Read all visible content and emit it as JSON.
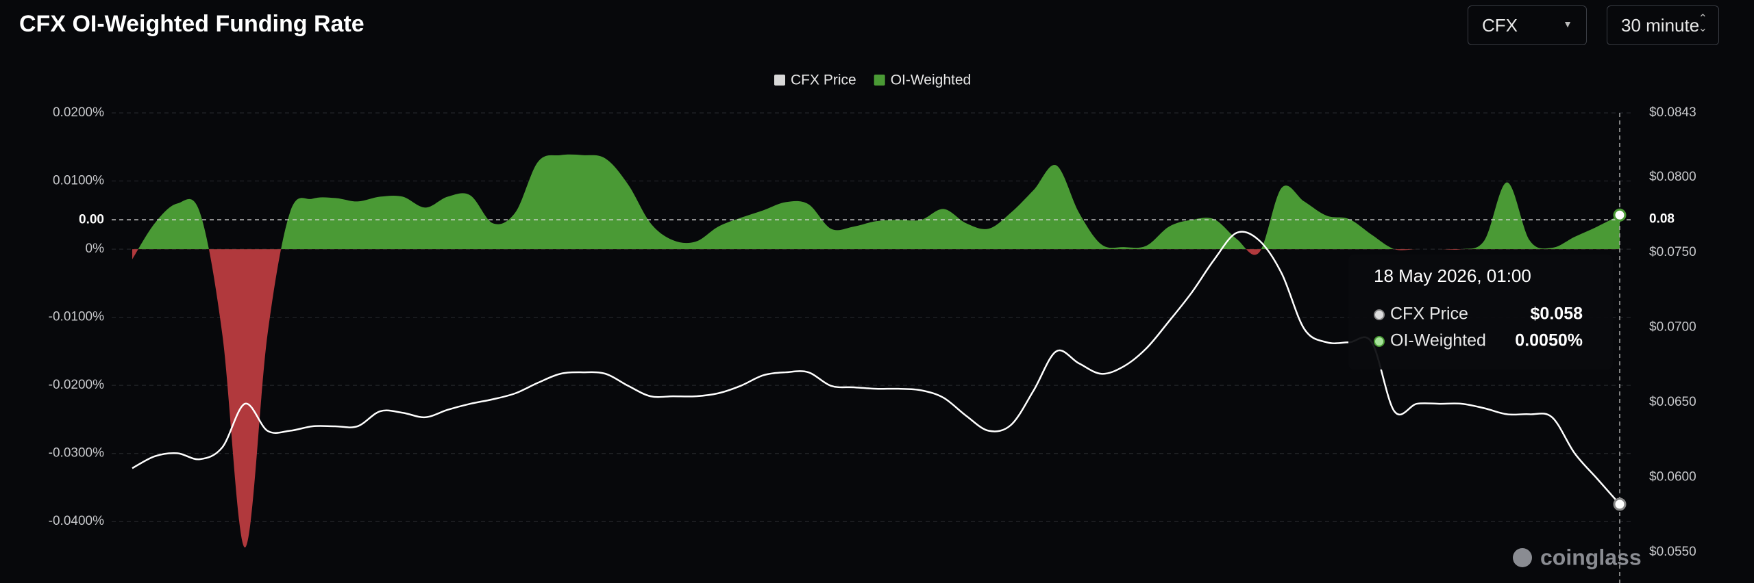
{
  "chart_data": {
    "type": "line-area",
    "title": "CFX OI-Weighted Funding Rate",
    "categories": [
      null,
      null,
      null,
      null,
      null,
      null,
      null,
      null,
      null,
      null,
      null,
      null,
      null,
      null,
      null,
      null,
      null,
      null,
      null,
      null,
      null,
      null,
      null,
      null,
      null,
      null,
      null,
      null,
      null,
      null,
      null,
      null,
      null,
      null,
      null,
      null,
      null,
      null,
      null,
      null,
      null,
      null,
      null,
      null,
      null,
      null,
      null,
      null,
      null,
      null,
      null,
      null,
      null,
      null,
      null,
      null,
      null,
      null,
      null,
      null,
      null,
      null,
      null,
      null,
      null,
      null,
      "18 May 2026, 01:00"
    ],
    "series": [
      {
        "name": "CFX Price",
        "color": "#ffffff",
        "axis": "y2",
        "tooltip_label": "$0.058",
        "values": [
          0.0606,
          0.0614,
          0.0616,
          0.0612,
          0.062,
          0.0649,
          0.0631,
          0.0631,
          0.0634,
          0.0634,
          0.0634,
          0.0644,
          0.0643,
          0.064,
          0.0645,
          0.0649,
          0.0652,
          0.0656,
          0.0663,
          0.0669,
          0.067,
          0.0669,
          0.0661,
          0.0654,
          0.0654,
          0.0654,
          0.0656,
          0.0661,
          0.0668,
          0.067,
          0.067,
          0.0661,
          0.066,
          0.0659,
          0.0659,
          0.0658,
          0.0653,
          0.0641,
          0.0631,
          0.0635,
          0.0658,
          0.0684,
          0.0676,
          0.0669,
          0.0674,
          0.0686,
          0.0704,
          0.0723,
          0.0745,
          0.0763,
          0.0758,
          0.0736,
          0.0699,
          0.069,
          0.069,
          0.069,
          0.0644,
          0.0649,
          0.0649,
          0.0649,
          0.0646,
          0.0642,
          0.0642,
          0.064,
          0.0616,
          0.0599,
          0.0582
        ]
      },
      {
        "name": "OI-Weighted",
        "color": "#4a9a35",
        "negative_color": "#b1393d",
        "axis": "y",
        "tooltip_label": "0.0050%",
        "values": [
          -0.0015,
          0.0038,
          0.0067,
          0.0054,
          -0.0126,
          -0.0438,
          -0.0126,
          0.0054,
          0.0074,
          0.0075,
          0.007,
          0.0077,
          0.0077,
          0.0061,
          0.0077,
          0.0079,
          0.0038,
          0.0054,
          0.0128,
          0.0138,
          0.0138,
          0.0133,
          0.0095,
          0.0038,
          0.0013,
          0.0011,
          0.0033,
          0.0046,
          0.0057,
          0.0069,
          0.0066,
          0.003,
          0.0033,
          0.0041,
          0.0043,
          0.0043,
          0.0059,
          0.0038,
          0.003,
          0.0054,
          0.0087,
          0.0123,
          0.0054,
          0.0007,
          0.0003,
          0.0005,
          0.0033,
          0.0043,
          0.0044,
          0.0015,
          -0.0005,
          0.009,
          0.007,
          0.0049,
          0.0044,
          0.0021,
          0,
          0,
          0,
          0,
          0.0013,
          0.0098,
          0.0013,
          0.0002,
          0.0018,
          0.0033,
          0.005
        ]
      }
    ],
    "ylim": [
      -0.045,
      0.02
    ],
    "yticks": [
      {
        "value": 0.02,
        "label": "0.0200%"
      },
      {
        "value": 0.01,
        "label": "0.0100%"
      },
      {
        "value": 0,
        "label": "0%"
      },
      {
        "value": -0.01,
        "label": "-0.0100%"
      },
      {
        "value": -0.02,
        "label": "-0.0200%"
      },
      {
        "value": -0.03,
        "label": "-0.0300%"
      },
      {
        "value": -0.04,
        "label": "-0.0400%"
      }
    ],
    "y2lim": [
      0.055,
      0.0843
    ],
    "y2ticks": [
      {
        "value": 0.0843,
        "label": "$0.0843"
      },
      {
        "value": 0.08,
        "label": "$0.0800"
      },
      {
        "value": 0.075,
        "label": "$0.0750"
      },
      {
        "value": 0.07,
        "label": "$0.0700"
      },
      {
        "value": 0.065,
        "label": "$0.0650"
      },
      {
        "value": 0.06,
        "label": "$0.0600"
      },
      {
        "value": 0.055,
        "label": "$0.0550"
      }
    ],
    "crosshair": {
      "y": 0.0043,
      "label": "0.00",
      "y2": 0.0772,
      "y2_label": "0.08"
    },
    "grid": true,
    "legend": "top"
  },
  "controls": [
    "CFX",
    "30 minute"
  ],
  "watermark": "coinglass"
}
